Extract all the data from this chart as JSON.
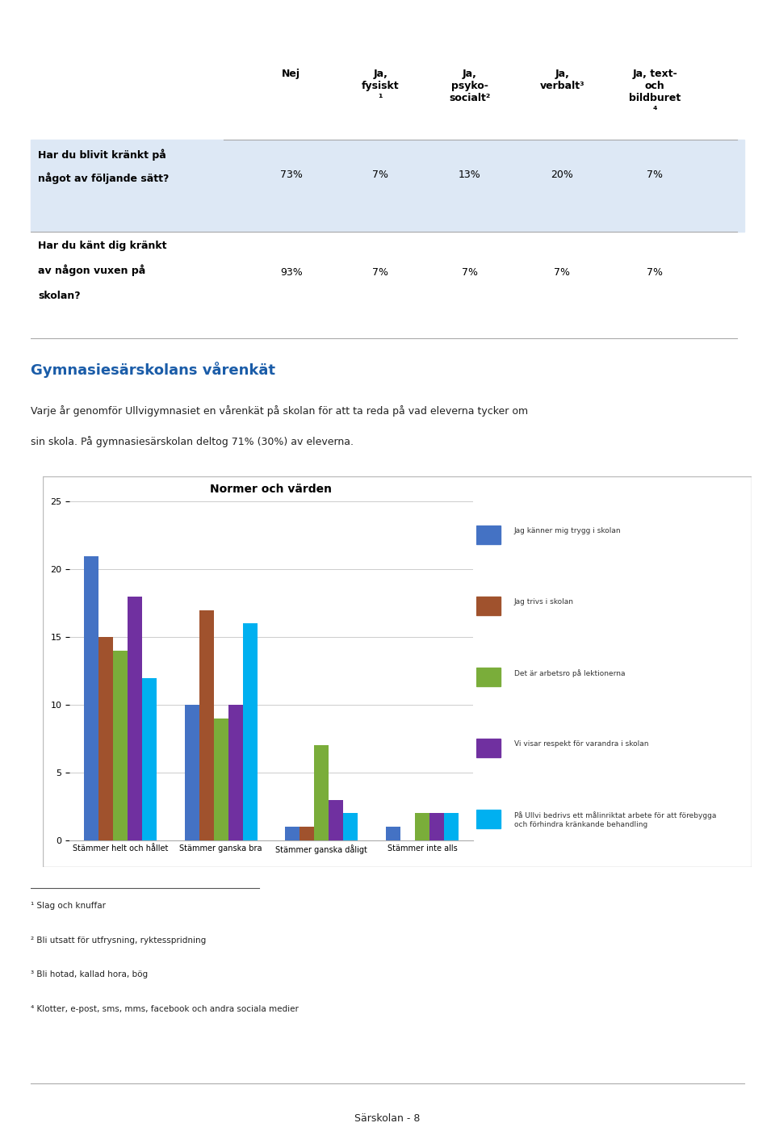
{
  "page_title": "Normer och värden",
  "page_title_bg": "#1a5ca8",
  "page_title_color": "#ffffff",
  "section_title": "Gymnasiesärskolans vårenkät",
  "section_title_color": "#1a5ca8",
  "section_text1": "Varje år genomför Ullvigymnasiet en vårenkät på skolan för att ta reda på vad eleverna tycker om",
  "section_text2": "sin skola. På gymnasiesärskolan deltog 71% (30%) av eleverna.",
  "table_col_headers": [
    "Nej",
    "Ja,\nfysiskt\n¹",
    "Ja,\npsyko-\nsocialt²",
    "Ja,\nverbalt³",
    "Ja, text-\noch\nbildburet\n⁴"
  ],
  "row1_label1": "Har du blivit kränkt på",
  "row1_label2": "något av följande sätt?",
  "row1_label3": "Har du känt dig kränkt",
  "row1_label4": "av någon vuxen på",
  "row1_label5": "skolan?",
  "row1_values": [
    "73%",
    "7%",
    "13%",
    "20%",
    "7%"
  ],
  "row2_values": [
    "93%",
    "7%",
    "7%",
    "7%",
    "7%"
  ],
  "chart_title": "Normer och värden",
  "categories": [
    "Stämmer helt och hållet",
    "Stämmer ganska bra",
    "Stämmer ganska dåligt",
    "Stämmer inte alls"
  ],
  "series": [
    {
      "label": "Jag känner mig trygg i skolan",
      "color": "#4472c4",
      "values": [
        21,
        10,
        1,
        1
      ]
    },
    {
      "label": "Jag trivs i skolan",
      "color": "#a0522d",
      "values": [
        15,
        17,
        1,
        0
      ]
    },
    {
      "label": "Det är arbetsro på lektionerna",
      "color": "#7aad3a",
      "values": [
        14,
        9,
        7,
        2
      ]
    },
    {
      "label": "Vi visar respekt för varandra i skolan",
      "color": "#7030a0",
      "values": [
        18,
        10,
        3,
        2
      ]
    },
    {
      "label": "På Ullvi bedrivs ett målinriktat arbete för att förebygga\noch förhindra kränkande behandling",
      "color": "#00b0f0",
      "values": [
        12,
        16,
        2,
        2
      ]
    }
  ],
  "ylim": [
    0,
    25
  ],
  "yticks": [
    0,
    5,
    10,
    15,
    20,
    25
  ],
  "footnotes": [
    "¹ Slag och knuffar",
    "² Bli utsatt för utfrysning, ryktesspridning",
    "³ Bli hotad, kallad hora, bög",
    "⁴ Klotter, e-post, sms, mms, facebook och andra sociala medier"
  ],
  "footer_text": "Särskolan - 8",
  "background_color": "#ffffff",
  "chart_bg": "#ffffff",
  "grid_color": "#cccccc",
  "line_color": "#aaaaaa",
  "text_color": "#222222"
}
